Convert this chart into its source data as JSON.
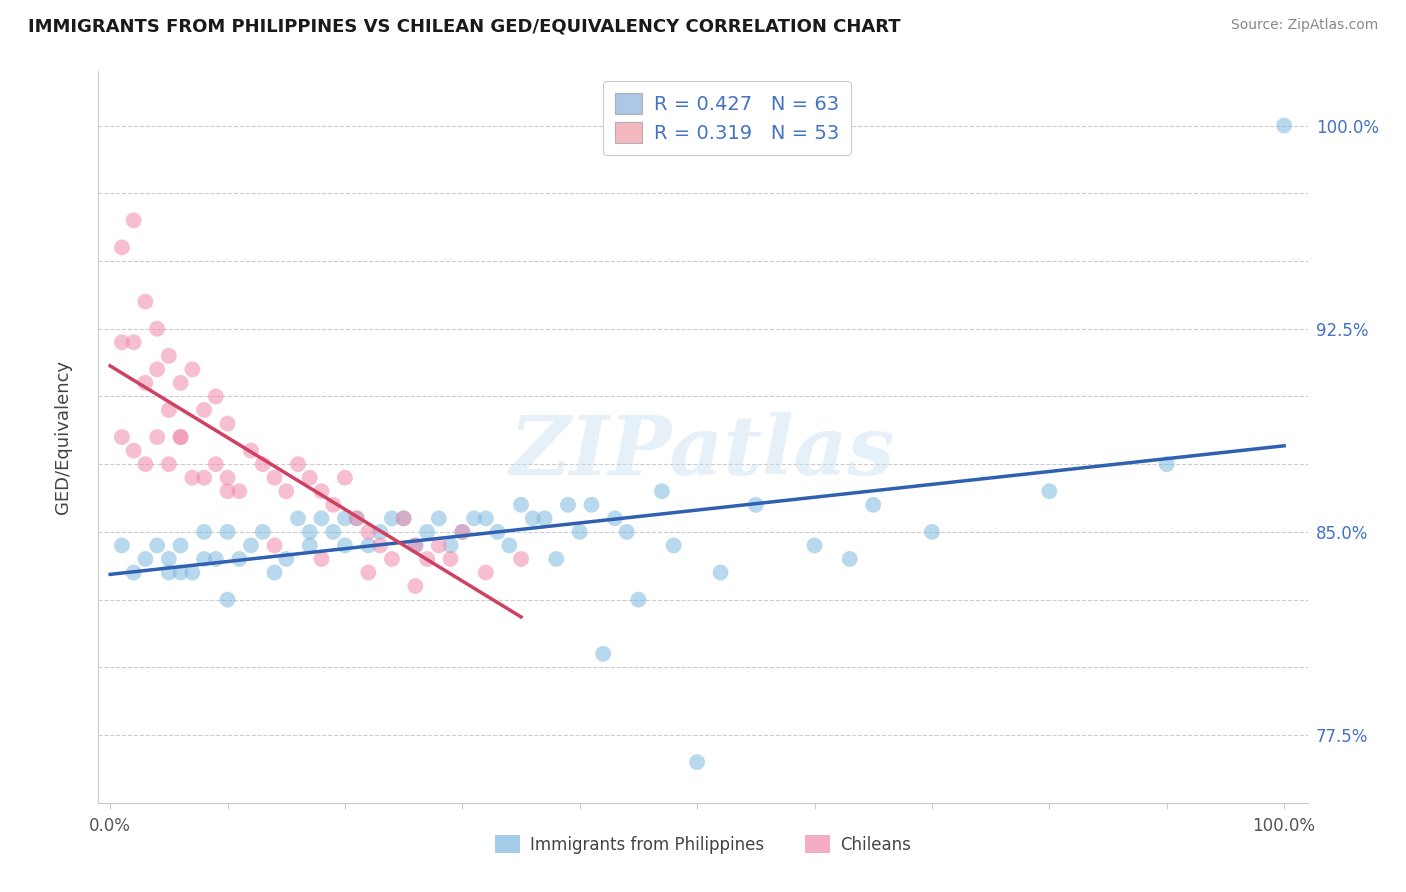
{
  "title": "IMMIGRANTS FROM PHILIPPINES VS CHILEAN GED/EQUIVALENCY CORRELATION CHART",
  "source": "Source: ZipAtlas.com",
  "ylabel": "GED/Equivalency",
  "y_ticks": [
    77.5,
    80.0,
    82.5,
    85.0,
    87.5,
    90.0,
    92.5,
    95.0,
    97.5,
    100.0
  ],
  "y_tick_labels": [
    "77.5%",
    "",
    "",
    "85.0%",
    "",
    "",
    "92.5%",
    "",
    "",
    "100.0%"
  ],
  "ylim": [
    75.0,
    102.0
  ],
  "xlim": [
    -0.01,
    1.02
  ],
  "legend_entries": [
    {
      "label": "R = 0.427   N = 63",
      "color": "#aec6e8"
    },
    {
      "label": "R = 0.319   N = 53",
      "color": "#f4b8c1"
    }
  ],
  "legend_bottom": [
    "Immigrants from Philippines",
    "Chileans"
  ],
  "watermark": "ZIPatlas",
  "blue_color": "#7fb9e0",
  "pink_color": "#f08aaa",
  "blue_line_color": "#3060b0",
  "pink_line_color": "#d04060",
  "grid_color": "#cccccc",
  "philippines_x": [
    0.01,
    0.02,
    0.03,
    0.04,
    0.05,
    0.05,
    0.06,
    0.06,
    0.07,
    0.08,
    0.08,
    0.09,
    0.1,
    0.1,
    0.11,
    0.12,
    0.13,
    0.14,
    0.15,
    0.16,
    0.17,
    0.17,
    0.18,
    0.19,
    0.2,
    0.2,
    0.21,
    0.22,
    0.23,
    0.24,
    0.25,
    0.26,
    0.27,
    0.28,
    0.29,
    0.3,
    0.31,
    0.32,
    0.33,
    0.34,
    0.35,
    0.36,
    0.37,
    0.38,
    0.39,
    0.4,
    0.41,
    0.42,
    0.43,
    0.44,
    0.45,
    0.47,
    0.48,
    0.5,
    0.52,
    0.55,
    0.6,
    0.65,
    0.7,
    0.8,
    0.9,
    1.0,
    0.63
  ],
  "philippines_y": [
    84.5,
    83.5,
    84.0,
    84.5,
    83.5,
    84.0,
    83.5,
    84.5,
    83.5,
    84.0,
    85.0,
    84.0,
    82.5,
    85.0,
    84.0,
    84.5,
    85.0,
    83.5,
    84.0,
    85.5,
    84.5,
    85.0,
    85.5,
    85.0,
    84.5,
    85.5,
    85.5,
    84.5,
    85.0,
    85.5,
    85.5,
    84.5,
    85.0,
    85.5,
    84.5,
    85.0,
    85.5,
    85.5,
    85.0,
    84.5,
    86.0,
    85.5,
    85.5,
    84.0,
    86.0,
    85.0,
    86.0,
    80.5,
    85.5,
    85.0,
    82.5,
    86.5,
    84.5,
    76.5,
    83.5,
    86.0,
    84.5,
    86.0,
    85.0,
    86.5,
    87.5,
    100.0,
    84.0
  ],
  "chilean_x": [
    0.01,
    0.01,
    0.01,
    0.02,
    0.02,
    0.02,
    0.03,
    0.03,
    0.03,
    0.04,
    0.04,
    0.04,
    0.05,
    0.05,
    0.05,
    0.06,
    0.06,
    0.07,
    0.07,
    0.08,
    0.08,
    0.09,
    0.09,
    0.1,
    0.1,
    0.11,
    0.12,
    0.13,
    0.14,
    0.15,
    0.16,
    0.17,
    0.18,
    0.19,
    0.2,
    0.21,
    0.22,
    0.23,
    0.24,
    0.25,
    0.26,
    0.27,
    0.28,
    0.29,
    0.3,
    0.32,
    0.35,
    0.18,
    0.22,
    0.26,
    0.14,
    0.1,
    0.06
  ],
  "chilean_y": [
    95.5,
    92.0,
    88.5,
    96.5,
    92.0,
    88.0,
    93.5,
    90.5,
    87.5,
    92.5,
    91.0,
    88.5,
    91.5,
    89.5,
    87.5,
    90.5,
    88.5,
    91.0,
    87.0,
    89.5,
    87.0,
    90.0,
    87.5,
    89.0,
    87.0,
    86.5,
    88.0,
    87.5,
    87.0,
    86.5,
    87.5,
    87.0,
    86.5,
    86.0,
    87.0,
    85.5,
    85.0,
    84.5,
    84.0,
    85.5,
    84.5,
    84.0,
    84.5,
    84.0,
    85.0,
    83.5,
    84.0,
    84.0,
    83.5,
    83.0,
    84.5,
    86.5,
    88.5
  ]
}
